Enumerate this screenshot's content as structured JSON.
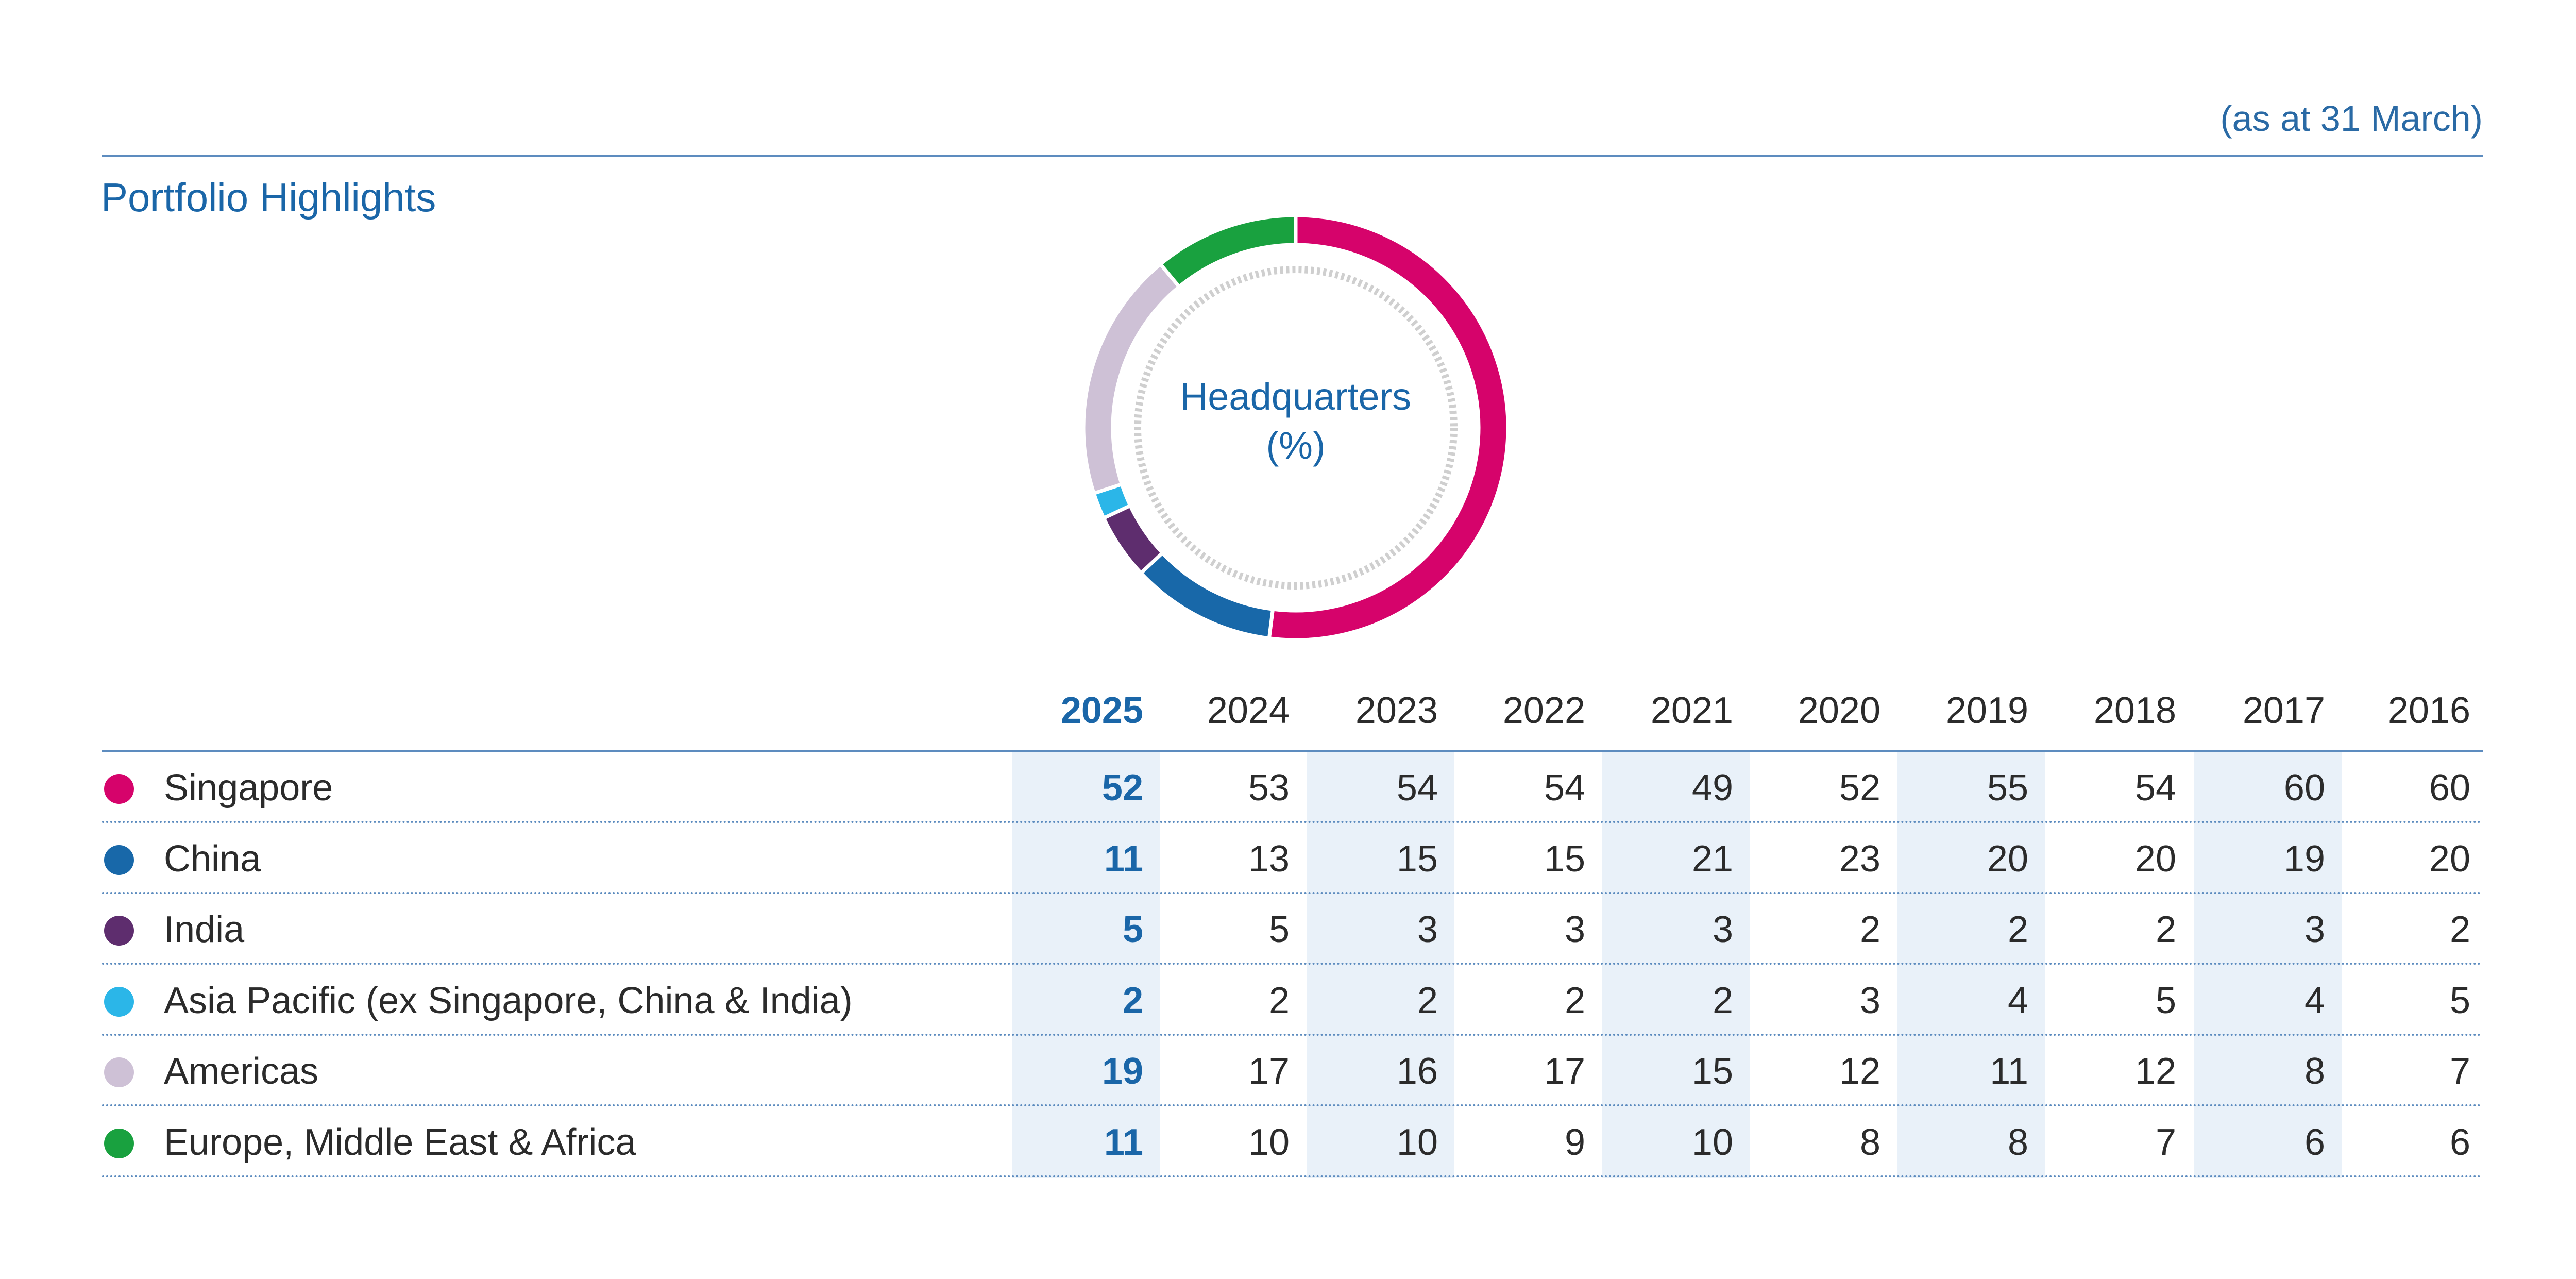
{
  "header": {
    "as_at": "(as at 31 March)",
    "title": "Portfolio Highlights"
  },
  "chart_data": [
    {
      "type": "pie",
      "title": "Headquarters",
      "title_line2": "(%)",
      "donut": true,
      "categories": [
        "Singapore",
        "China",
        "India",
        "Asia Pacific (ex Singapore, China & India)",
        "Americas",
        "Europe, Middle East & Africa"
      ],
      "values": [
        52,
        11,
        5,
        2,
        19,
        11
      ],
      "colors": [
        "#d6036b",
        "#1868a9",
        "#5e2d6e",
        "#2bb6e8",
        "#cec1d6",
        "#19a13f"
      ]
    },
    {
      "type": "table",
      "columns": [
        "2025",
        "2024",
        "2023",
        "2022",
        "2021",
        "2020",
        "2019",
        "2018",
        "2017",
        "2016"
      ],
      "highlight_column": "2025",
      "rows": [
        {
          "label": "Singapore",
          "color": "#d6036b",
          "values": [
            "52",
            "53",
            "54",
            "54",
            "49",
            "52",
            "55",
            "54",
            "60",
            "60"
          ]
        },
        {
          "label": "China",
          "color": "#1868a9",
          "values": [
            "11",
            "13",
            "15",
            "15",
            "21",
            "23",
            "20",
            "20",
            "19",
            "20"
          ]
        },
        {
          "label": "India",
          "color": "#5e2d6e",
          "values": [
            "5",
            "5",
            "3",
            "3",
            "3",
            "2",
            "2",
            "2",
            "3",
            "2"
          ]
        },
        {
          "label": "Asia Pacific (ex Singapore, China & India)",
          "color": "#2bb6e8",
          "values": [
            "2",
            "2",
            "2",
            "2",
            "2",
            "3",
            "4",
            "5",
            "4",
            "5"
          ]
        },
        {
          "label": "Americas",
          "color": "#cec1d6",
          "values": [
            "19",
            "17",
            "16",
            "17",
            "15",
            "12",
            "11",
            "12",
            "8",
            "7"
          ]
        },
        {
          "label": "Europe, Middle East & Africa",
          "color": "#19a13f",
          "values": [
            "11",
            "10",
            "10",
            "9",
            "10",
            "8",
            "8",
            "7",
            "6",
            "6"
          ]
        }
      ]
    }
  ]
}
